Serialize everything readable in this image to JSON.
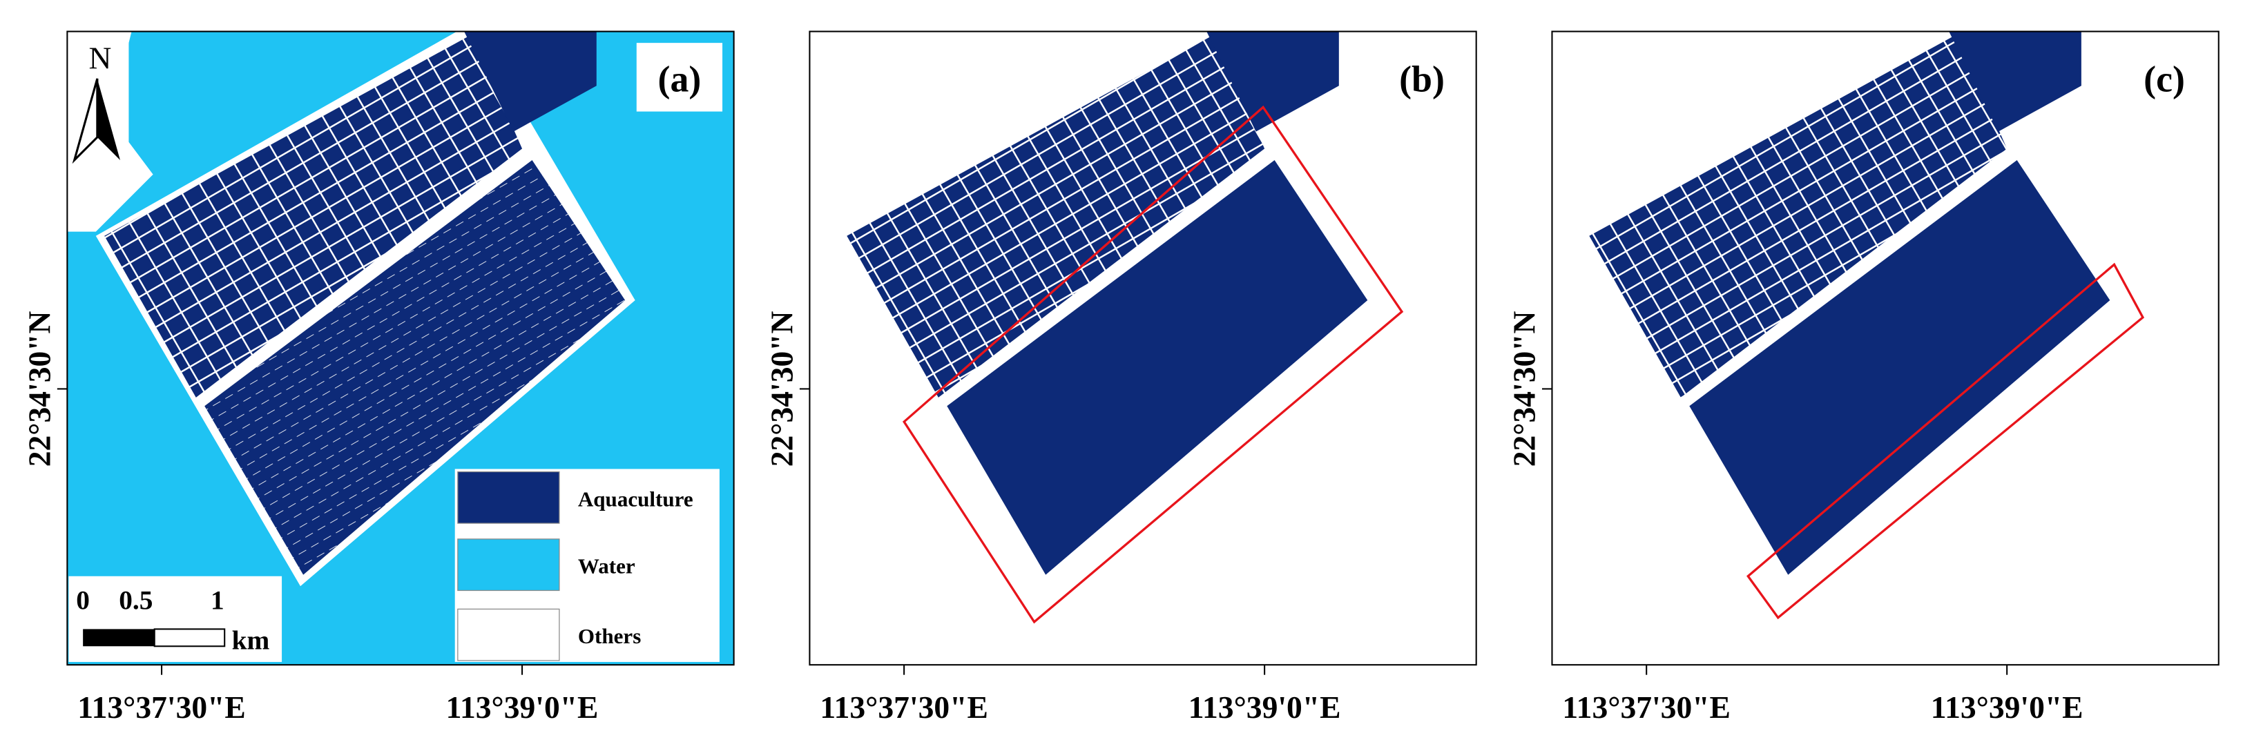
{
  "panels": [
    {
      "label": "(a)",
      "y_label": "22°34'30\"N",
      "x_labels": [
        "113°37'30\"E",
        "113°39'0\"E"
      ]
    },
    {
      "label": "(b)",
      "y_label": "22°34'30\"N",
      "x_labels": [
        "113°37'30\"E",
        "113°39'0\"E"
      ]
    },
    {
      "label": "(c)",
      "y_label": "22°34'30\"N",
      "x_labels": [
        "113°37'30\"E",
        "113°39'0\"E"
      ]
    }
  ],
  "north": "N",
  "legend": [
    "Aquaculture",
    "Water",
    "Others"
  ],
  "scale_bar": {
    "ticks": [
      "0",
      "0.5",
      "1"
    ],
    "unit": "km"
  }
}
